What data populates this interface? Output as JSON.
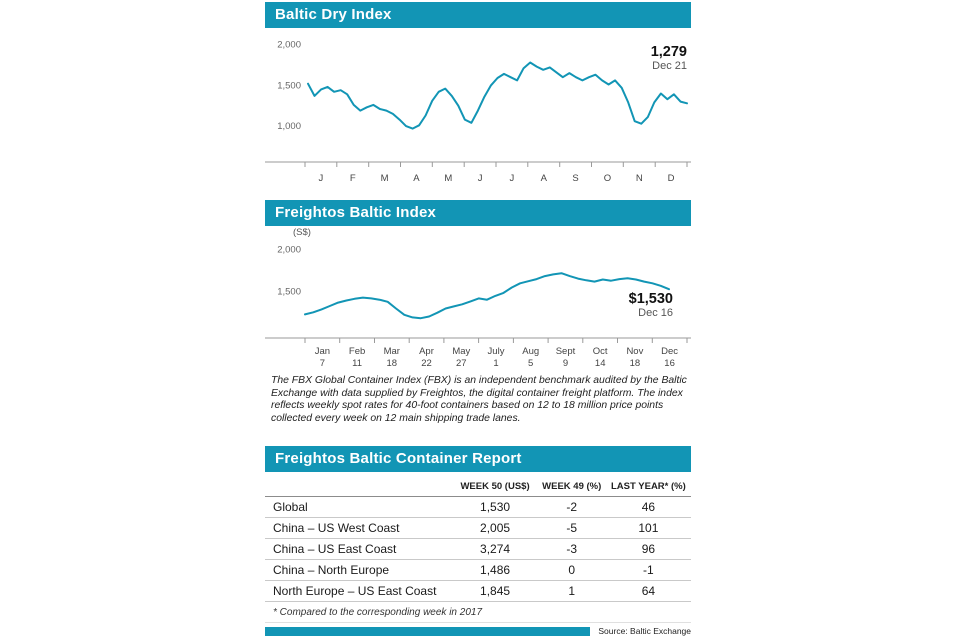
{
  "colors": {
    "accent": "#1295b5"
  },
  "description": "The FBX Global Container Index (FBX) is an independent benchmark audited by the Baltic Exchange with data supplied by Freightos, the digital container freight platform. The index reflects weekly spot rates for 40-foot containers based on 12 to 18 million price points collected every week on 12 main shipping trade lanes.",
  "source": "Source: Baltic Exchange",
  "chart_data": [
    {
      "type": "line",
      "title": "Baltic Dry Index",
      "y_ticks": [
        2000,
        1500,
        1000
      ],
      "ylim": [
        560,
        2080
      ],
      "x_tick_labels": [
        "J",
        "F",
        "M",
        "A",
        "M",
        "J",
        "J",
        "A",
        "S",
        "O",
        "N",
        "D"
      ],
      "values": [
        1520,
        1370,
        1450,
        1480,
        1420,
        1440,
        1390,
        1260,
        1190,
        1230,
        1260,
        1210,
        1190,
        1150,
        1080,
        1000,
        970,
        1010,
        1130,
        1310,
        1420,
        1460,
        1370,
        1250,
        1080,
        1040,
        1190,
        1360,
        1500,
        1590,
        1640,
        1600,
        1560,
        1710,
        1780,
        1730,
        1690,
        1720,
        1660,
        1600,
        1650,
        1600,
        1560,
        1600,
        1630,
        1560,
        1510,
        1560,
        1470,
        1290,
        1060,
        1030,
        1110,
        1290,
        1400,
        1330,
        1390,
        1300,
        1279
      ],
      "annotation": {
        "value": "1,279",
        "date": "Dec 21"
      }
    },
    {
      "type": "line",
      "title": "Freightos Baltic Index",
      "unit_label": "(S$)",
      "y_ticks": [
        2000,
        1500
      ],
      "ylim": [
        950,
        2090
      ],
      "x_tick_labels": [
        [
          "Jan",
          "7"
        ],
        [
          "Feb",
          "11"
        ],
        [
          "Mar",
          "18"
        ],
        [
          "Apr",
          "22"
        ],
        [
          "May",
          "27"
        ],
        [
          "July",
          "1"
        ],
        [
          "Aug",
          "5"
        ],
        [
          "Sept",
          "9"
        ],
        [
          "Oct",
          "14"
        ],
        [
          "Nov",
          "18"
        ],
        [
          "Dec",
          "16"
        ]
      ],
      "values": [
        1230,
        1255,
        1290,
        1330,
        1370,
        1395,
        1415,
        1430,
        1420,
        1405,
        1380,
        1300,
        1225,
        1195,
        1185,
        1205,
        1250,
        1300,
        1325,
        1350,
        1385,
        1420,
        1405,
        1450,
        1485,
        1550,
        1600,
        1625,
        1650,
        1685,
        1705,
        1720,
        1685,
        1655,
        1635,
        1620,
        1645,
        1630,
        1650,
        1660,
        1645,
        1620,
        1600,
        1570,
        1530
      ],
      "annotation": {
        "value": "$1,530",
        "date": "Dec 16"
      }
    },
    {
      "type": "table",
      "title": "Freightos Baltic Container Report",
      "columns": [
        "",
        "WEEK 50 (US$)",
        "WEEK 49 (%)",
        "LAST YEAR* (%)"
      ],
      "rows": [
        [
          "Global",
          "1,530",
          "-2",
          "46"
        ],
        [
          "China – US West Coast",
          "2,005",
          "-5",
          "101"
        ],
        [
          "China – US East Coast",
          "3,274",
          "-3",
          "96"
        ],
        [
          "China – North Europe",
          "1,486",
          "0",
          "-1"
        ],
        [
          "North Europe – US East Coast",
          "1,845",
          "1",
          "64"
        ]
      ],
      "footnote": "* Compared to the corresponding week in 2017"
    }
  ]
}
